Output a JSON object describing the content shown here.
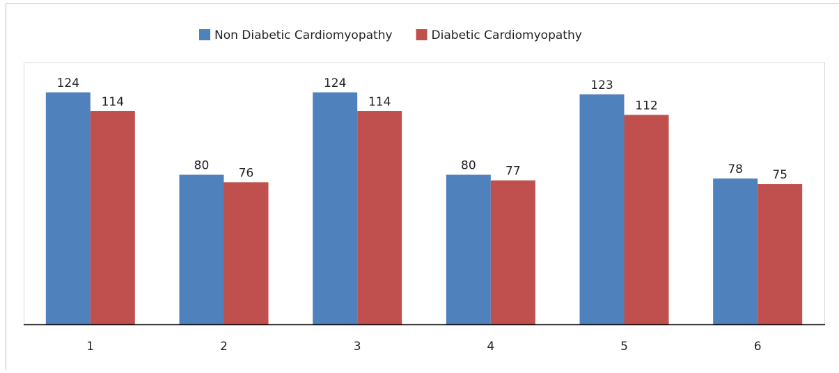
{
  "chart_data": {
    "type": "bar",
    "categories": [
      "1",
      "2",
      "3",
      "4",
      "5",
      "6"
    ],
    "series": [
      {
        "name": "Non Diabetic Cardiomyopathy",
        "color": "#4f81bd",
        "values": [
          124,
          80,
          124,
          80,
          123,
          78
        ]
      },
      {
        "name": "Diabetic Cardiomyopathy",
        "color": "#c0504d",
        "values": [
          114,
          76,
          114,
          77,
          112,
          75
        ]
      }
    ],
    "ylim": [
      0,
      140
    ],
    "legend": "top"
  }
}
